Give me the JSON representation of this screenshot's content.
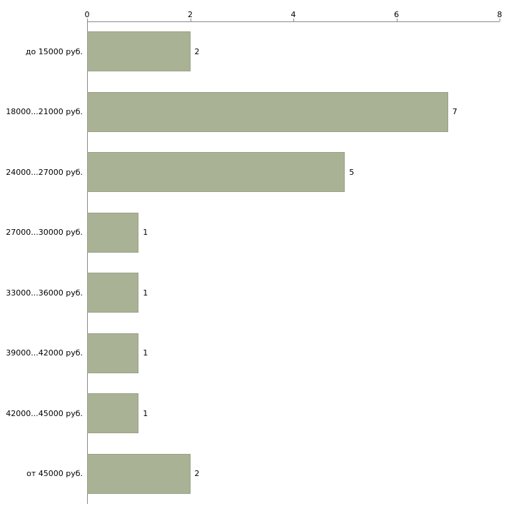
{
  "chart_data": {
    "type": "bar",
    "orientation": "horizontal",
    "title": "",
    "xlabel": "",
    "ylabel": "",
    "categories": [
      "до 15000 руб.",
      "18000...21000 руб.",
      "24000...27000 руб.",
      "27000...30000 руб.",
      "33000...36000 руб.",
      "39000...42000 руб.",
      "42000...45000 руб.",
      "от 45000 руб."
    ],
    "values": [
      2,
      7,
      5,
      1,
      1,
      1,
      1,
      2
    ],
    "xlim": [
      0,
      8
    ],
    "xticks": [
      0,
      2,
      4,
      6,
      8
    ],
    "grid": false,
    "legend": "none",
    "bar_color": "#a9b295",
    "bar_border_color": "#99a186",
    "axis_color": "#8a8a8a",
    "text_color": "#000000",
    "background_color": "#ffffff"
  }
}
